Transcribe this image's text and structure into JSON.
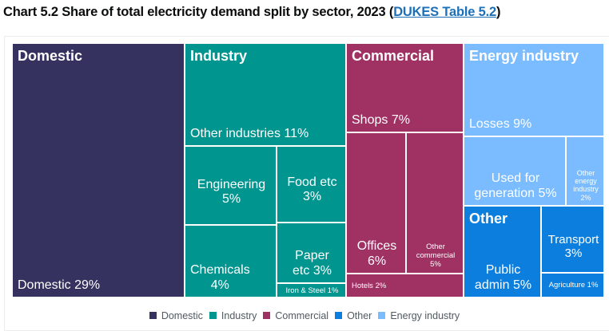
{
  "header": {
    "title_prefix": "Chart 5.2 Share of total electricity demand split by sector, 2023 (",
    "link_text": "DUKES Table 5.2",
    "title_suffix": ")"
  },
  "chart_data": {
    "type": "treemap",
    "title": "Chart 5.2 Share of total electricity demand split by sector, 2023",
    "unit": "%",
    "legend_position": "bottom",
    "groups": [
      {
        "name": "Domestic",
        "color": "#35325f",
        "items": [
          {
            "name": "Domestic",
            "label": "Domestic 29%",
            "value": 29
          }
        ]
      },
      {
        "name": "Industry",
        "color": "#00958f",
        "items": [
          {
            "name": "Other industries",
            "label": "Other industries 11%",
            "value": 11
          },
          {
            "name": "Engineering",
            "label": "Engineering\n5%",
            "value": 5
          },
          {
            "name": "Chemicals",
            "label": "Chemicals\n4%",
            "value": 4
          },
          {
            "name": "Food etc",
            "label": "Food etc\n3%",
            "value": 3
          },
          {
            "name": "Paper etc",
            "label": "Paper\netc 3%",
            "value": 3
          },
          {
            "name": "Iron & Steel",
            "label": "Iron & Steel 1%",
            "value": 1
          }
        ]
      },
      {
        "name": "Commercial",
        "color": "#a03163",
        "items": [
          {
            "name": "Shops",
            "label": "Shops 7%",
            "value": 7
          },
          {
            "name": "Offices",
            "label": "Offices\n6%",
            "value": 6
          },
          {
            "name": "Other commercial",
            "label": "Other\ncommercial\n5%",
            "value": 5
          },
          {
            "name": "Hotels",
            "label": "Hotels 2%",
            "value": 2
          }
        ]
      },
      {
        "name": "Energy industry",
        "color": "#7abcff",
        "items": [
          {
            "name": "Losses",
            "label": "Losses 9%",
            "value": 9
          },
          {
            "name": "Used for generation",
            "label": "Used for\ngeneration 5%",
            "value": 5
          },
          {
            "name": "Other energy industry",
            "label": "Other\nenergy\nindustry\n2%",
            "value": 2
          }
        ]
      },
      {
        "name": "Other",
        "color": "#0b7ede",
        "items": [
          {
            "name": "Public admin",
            "label": "Public\nadmin 5%",
            "value": 5
          },
          {
            "name": "Transport",
            "label": "Transport\n3%",
            "value": 3
          },
          {
            "name": "Agriculture",
            "label": "Agriculture 1%",
            "value": 1
          }
        ]
      }
    ],
    "legend": [
      {
        "label": "Domestic",
        "color": "#35325f"
      },
      {
        "label": "Industry",
        "color": "#00958f"
      },
      {
        "label": "Commercial",
        "color": "#a03163"
      },
      {
        "label": "Other",
        "color": "#0b7ede"
      },
      {
        "label": "Energy industry",
        "color": "#7abcff"
      }
    ]
  }
}
